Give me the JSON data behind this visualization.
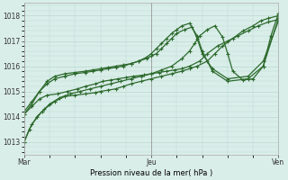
{
  "title": "Pression niveau de la mer( hPa )",
  "bg_color": "#daeee9",
  "grid_color": "#b8d8d2",
  "line_color": "#2d6a2d",
  "ylim": [
    1012.5,
    1018.5
  ],
  "yticks": [
    1013,
    1014,
    1015,
    1016,
    1017,
    1018
  ],
  "xtick_labels": [
    "Mar",
    "Jeu",
    "Ven"
  ],
  "xtick_positions": [
    0,
    0.5,
    1.0
  ],
  "series": [
    {
      "x": [
        0.0,
        0.02,
        0.05,
        0.08,
        0.12,
        0.16,
        0.2,
        0.24,
        0.28,
        0.3,
        0.33,
        0.36,
        0.39,
        0.42,
        0.46,
        0.5,
        0.54,
        0.58,
        0.62,
        0.65,
        0.68,
        0.72,
        0.75,
        0.78,
        0.82,
        0.86,
        0.9,
        0.93,
        0.96,
        1.0
      ],
      "y": [
        1013.0,
        1013.5,
        1014.0,
        1014.3,
        1014.6,
        1014.8,
        1014.85,
        1014.9,
        1014.95,
        1015.0,
        1015.05,
        1015.1,
        1015.2,
        1015.3,
        1015.4,
        1015.5,
        1015.6,
        1015.7,
        1015.8,
        1015.9,
        1016.0,
        1016.2,
        1016.5,
        1016.8,
        1017.1,
        1017.4,
        1017.6,
        1017.8,
        1017.9,
        1018.0
      ]
    },
    {
      "x": [
        0.0,
        0.03,
        0.06,
        0.09,
        0.13,
        0.17,
        0.21,
        0.24,
        0.28,
        0.31,
        0.34,
        0.37,
        0.4,
        0.43,
        0.47,
        0.5,
        0.53,
        0.56,
        0.59,
        0.62,
        0.65,
        0.69,
        0.72,
        0.76,
        0.8,
        0.84,
        0.88,
        0.92,
        0.96,
        1.0
      ],
      "y": [
        1014.1,
        1014.4,
        1014.7,
        1014.85,
        1014.9,
        1015.0,
        1015.1,
        1015.2,
        1015.3,
        1015.4,
        1015.45,
        1015.5,
        1015.55,
        1015.6,
        1015.65,
        1015.7,
        1015.75,
        1015.8,
        1015.85,
        1015.9,
        1016.0,
        1016.2,
        1016.5,
        1016.8,
        1017.0,
        1017.2,
        1017.4,
        1017.6,
        1017.75,
        1017.85
      ]
    },
    {
      "x": [
        0.0,
        0.03,
        0.06,
        0.09,
        0.12,
        0.16,
        0.2,
        0.24,
        0.27,
        0.3,
        0.33,
        0.36,
        0.39,
        0.42,
        0.45,
        0.48,
        0.5,
        0.52,
        0.54,
        0.56,
        0.58,
        0.6,
        0.63,
        0.66,
        0.68,
        0.7,
        0.74,
        0.8,
        0.88,
        0.94,
        1.0
      ],
      "y": [
        1014.1,
        1014.5,
        1015.0,
        1015.3,
        1015.5,
        1015.6,
        1015.7,
        1015.75,
        1015.8,
        1015.85,
        1015.9,
        1015.95,
        1016.0,
        1016.1,
        1016.2,
        1016.3,
        1016.4,
        1016.5,
        1016.7,
        1016.9,
        1017.1,
        1017.3,
        1017.45,
        1017.55,
        1017.1,
        1016.5,
        1015.9,
        1015.5,
        1015.6,
        1016.2,
        1017.8
      ]
    },
    {
      "x": [
        0.0,
        0.03,
        0.06,
        0.09,
        0.12,
        0.16,
        0.2,
        0.24,
        0.27,
        0.3,
        0.33,
        0.36,
        0.39,
        0.42,
        0.45,
        0.48,
        0.5,
        0.52,
        0.54,
        0.56,
        0.58,
        0.6,
        0.62,
        0.65,
        0.68,
        0.7,
        0.74,
        0.8,
        0.88,
        0.94,
        1.0
      ],
      "y": [
        1014.2,
        1014.6,
        1015.0,
        1015.4,
        1015.6,
        1015.7,
        1015.75,
        1015.8,
        1015.85,
        1015.9,
        1015.95,
        1016.0,
        1016.05,
        1016.1,
        1016.2,
        1016.35,
        1016.5,
        1016.7,
        1016.9,
        1017.1,
        1017.3,
        1017.45,
        1017.6,
        1017.7,
        1017.2,
        1016.6,
        1015.8,
        1015.4,
        1015.5,
        1016.0,
        1017.9
      ]
    },
    {
      "x": [
        0.0,
        0.03,
        0.07,
        0.1,
        0.14,
        0.18,
        0.22,
        0.26,
        0.3,
        0.34,
        0.38,
        0.42,
        0.46,
        0.5,
        0.54,
        0.58,
        0.62,
        0.65,
        0.67,
        0.69,
        0.72,
        0.75,
        0.78,
        0.8,
        0.82,
        0.86,
        0.9,
        0.94,
        0.97,
        1.0
      ],
      "y": [
        1013.0,
        1013.7,
        1014.2,
        1014.5,
        1014.75,
        1014.9,
        1015.0,
        1015.1,
        1015.2,
        1015.3,
        1015.4,
        1015.5,
        1015.6,
        1015.7,
        1015.85,
        1016.0,
        1016.3,
        1016.6,
        1016.9,
        1017.2,
        1017.45,
        1017.6,
        1017.15,
        1016.5,
        1015.8,
        1015.45,
        1015.5,
        1016.0,
        1017.2,
        1018.1
      ]
    }
  ],
  "marker_size": 2.5,
  "linewidth": 0.9
}
